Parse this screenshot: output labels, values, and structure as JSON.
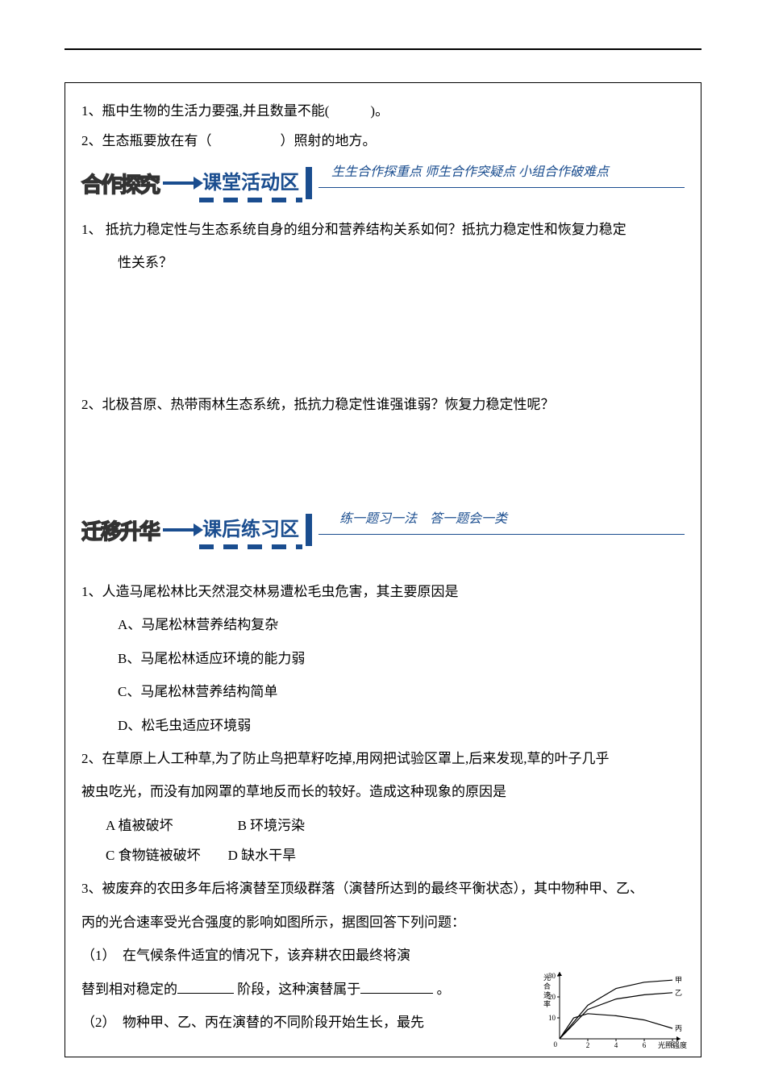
{
  "top": {
    "line1": "1、瓶中生物的生活力要强,并且数量不能(　　　)。",
    "line2": "2、生态瓶要放在有（　　　　　）照射的地方。"
  },
  "section1": {
    "outline": "合作探究",
    "title": "课堂活动区",
    "subtitle": "生生合作探重点 师生合作突疑点 小组合作破难点",
    "q1": "1、 抵抗力稳定性与生态系统自身的组分和营养结构关系如何？抵抗力稳定性和恢复力稳定",
    "q1b": "性关系？",
    "q2": "2、北极苔原、热带雨林生态系统，抵抗力稳定性谁强谁弱？恢复力稳定性呢？"
  },
  "section2": {
    "outline": "迁移升华",
    "title": "课后练习区",
    "subtitle": "练一题习一法　答一题会一类",
    "q1": "1、人造马尾松林比天然混交林易遭松毛虫危害，其主要原因是",
    "q1a": "A、马尾松林营养结构复杂",
    "q1b": "B、马尾松林适应环境的能力弱",
    "q1c": "C、马尾松林营养结构简单",
    "q1d": "D、松毛虫适应环境弱",
    "q2": "2、在草原上人工种草,为了防止鸟把草籽吃掉,用网把试验区罩上,后来发现,草的叶子几乎",
    "q2b": "被虫吃光，而没有加网罩的草地反而长的较好。造成这种现象的原因是",
    "q2_optA": "A 植被破坏",
    "q2_optB": "B 环境污染",
    "q2_optC": "C 食物链被破坏",
    "q2_optD": "D 缺水干旱",
    "q3": "3、被废弃的农田多年后将演替至顶级群落（演替所达到的最终平衡状态），其中物种甲、乙、",
    "q3b": "丙的光合速率受光合强度的影响如图所示，据图回答下列问题：",
    "q3_1a": "（1）　在气候条件适宜的情况下，该弃耕农田最终将演",
    "q3_1b_pre": "替到相对稳定的",
    "q3_1b_mid": " 阶段，这种演替属于",
    "q3_1b_post": " 。",
    "q3_2": "（2）　物种甲、乙、丙在演替的不同阶段开始生长，最先"
  },
  "chart": {
    "type": "line",
    "ylabel": "光合速率",
    "xlabel": "光照强度",
    "x_ticks": [
      0,
      2,
      4,
      6,
      8
    ],
    "y_ticks": [
      0,
      10,
      20,
      30
    ],
    "series": [
      {
        "name": "甲",
        "color": "#000000",
        "points": [
          [
            0,
            0
          ],
          [
            2,
            16
          ],
          [
            4,
            24
          ],
          [
            6,
            27
          ],
          [
            8,
            28
          ]
        ]
      },
      {
        "name": "乙",
        "color": "#000000",
        "points": [
          [
            0,
            0
          ],
          [
            2,
            14
          ],
          [
            4,
            19
          ],
          [
            6,
            21
          ],
          [
            8,
            22
          ]
        ]
      },
      {
        "name": "丙",
        "color": "#000000",
        "points": [
          [
            0,
            0
          ],
          [
            1,
            10
          ],
          [
            2,
            12
          ],
          [
            4,
            11
          ],
          [
            6,
            9
          ],
          [
            8,
            5
          ]
        ]
      }
    ],
    "line_width": 1.2,
    "font_size": 9,
    "axis_color": "#000000"
  }
}
